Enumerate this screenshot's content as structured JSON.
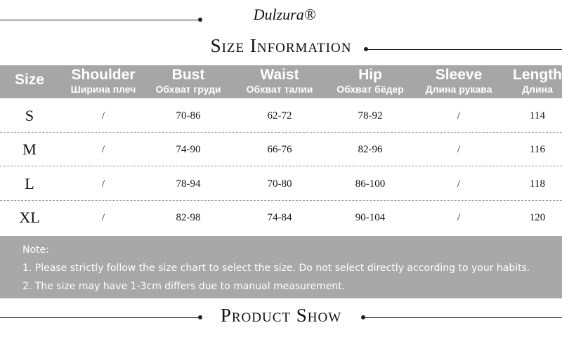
{
  "brand": "Dulzura®",
  "title": "Size Information",
  "table": {
    "columns": [
      {
        "en": "Size",
        "ru": null
      },
      {
        "en": "Shoulder",
        "ru": "Ширина плеч"
      },
      {
        "en": "Bust",
        "ru": "Обхват груди"
      },
      {
        "en": "Waist",
        "ru": "Обхват талии"
      },
      {
        "en": "Hip",
        "ru": "Обхват бёдер"
      },
      {
        "en": "Sleeve",
        "ru": "Длина рукава"
      },
      {
        "en": "Length",
        "ru": "Длина"
      }
    ],
    "rows": [
      [
        "S",
        "/",
        "70-86",
        "62-72",
        "78-92",
        "/",
        "114"
      ],
      [
        "M",
        "/",
        "74-90",
        "66-76",
        "82-96",
        "/",
        "116"
      ],
      [
        "L",
        "/",
        "78-94",
        "70-80",
        "86-100",
        "/",
        "118"
      ],
      [
        "XL",
        "/",
        "82-98",
        "74-84",
        "90-104",
        "/",
        "120"
      ]
    ]
  },
  "note": {
    "heading": "Note:",
    "lines": [
      "1. Please strictly follow the size chart to select the size. Do not select directly according to your habits.",
      "2. The size may have 1-3cm differs due to manual measurement."
    ]
  },
  "footer_title": "Product Show"
}
